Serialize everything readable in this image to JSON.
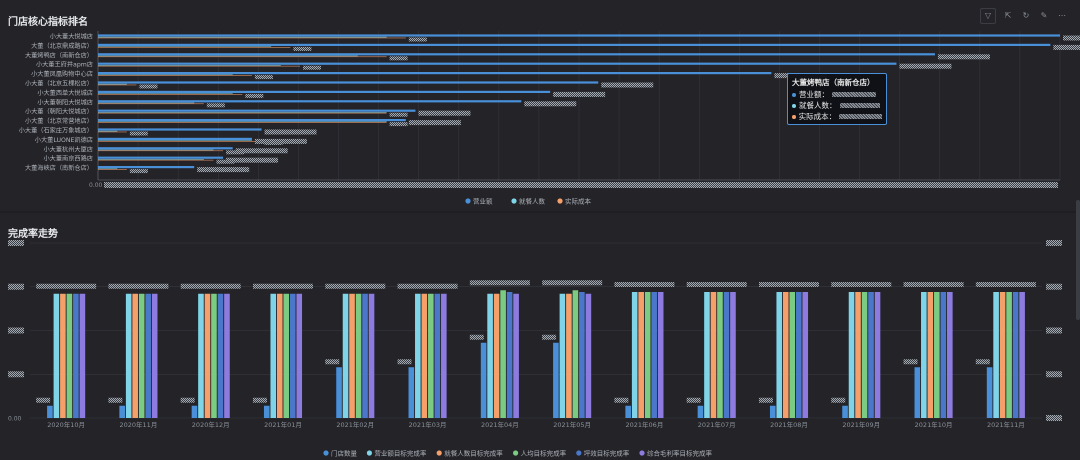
{
  "colors": {
    "revenue": "#4a90d9",
    "diners": "#7fd4e8",
    "cost": "#f59f6a",
    "store_count": "#4a90d9",
    "rev_rate": "#7fd4e8",
    "diner_rate": "#f59f6a",
    "avg_rate": "#7ccb82",
    "ping_rate": "#4a77c9",
    "margin_rate": "#8d7be0"
  },
  "top_panel": {
    "title": "门店核心指标排名"
  },
  "bottom_panel": {
    "title": "完成率走势"
  },
  "tooltip": {
    "title": "大董烤鸭店（南新仓店）",
    "rows": [
      {
        "label": "营业额：",
        "icon": "revenue"
      },
      {
        "label": "就餐人数：",
        "icon": "diners"
      },
      {
        "label": "实际成本：",
        "icon": "cost"
      }
    ]
  },
  "chart_data": [
    {
      "type": "bar",
      "orientation": "horizontal",
      "title": "门店核心指标排名",
      "categories": [
        "小大董大悦城店",
        "大董（北京鼎成路店）",
        "大董烤鸭店（南新仓店）",
        "小大董王府井apm店",
        "小大董凤凰购物中心店",
        "小大董（北京五棵松店）",
        "小大董西单大悦城店",
        "小大董朝阳大悦城店",
        "小大董（朝阳大悦城店）",
        "小大董（北京常营地店）",
        "小大董（石家庄万象城店）",
        "小大董LUONE凯德店",
        "小大董杭州大厦店",
        "小大董南京西路店",
        "大董海峡店（南新仓店）"
      ],
      "series": [
        {
          "name": "营业额",
          "values": [
            100,
            99,
            87,
            83,
            70,
            52,
            47,
            44,
            33,
            32,
            17,
            16,
            14,
            13,
            10
          ]
        },
        {
          "name": "就餐人数",
          "values": [
            30,
            18,
            27,
            19,
            14,
            3,
            14,
            10,
            30,
            30,
            2,
            16,
            12,
            11,
            2
          ]
        },
        {
          "name": "实际成本",
          "values": [
            32,
            20,
            30,
            21,
            16,
            4,
            15,
            11,
            30,
            30,
            3,
            17,
            13,
            12,
            3
          ]
        }
      ],
      "x_axis_first_tick": "0.00",
      "legend": "bottom"
    },
    {
      "type": "bar",
      "title": "完成率走势",
      "categories": [
        "2020年10月",
        "2020年11月",
        "2020年12月",
        "2021年01月",
        "2021年02月",
        "2021年03月",
        "2021年04月",
        "2021年05月",
        "2021年06月",
        "2021年07月",
        "2021年08月",
        "2021年09月",
        "2021年10月",
        "2021年11月"
      ],
      "series": [
        {
          "name": "门店数量",
          "values": [
            0.07,
            0.07,
            0.07,
            0.07,
            0.29,
            0.29,
            0.43,
            0.43,
            0.07,
            0.07,
            0.07,
            0.07,
            0.29,
            0.29
          ]
        },
        {
          "name": "营业额目标完成率",
          "values": [
            0.71,
            0.71,
            0.71,
            0.71,
            0.71,
            0.71,
            0.71,
            0.71,
            0.72,
            0.72,
            0.72,
            0.72,
            0.72,
            0.72
          ]
        },
        {
          "name": "就餐人数目标完成率",
          "values": [
            0.71,
            0.71,
            0.71,
            0.71,
            0.71,
            0.71,
            0.71,
            0.71,
            0.72,
            0.72,
            0.72,
            0.72,
            0.72,
            0.72
          ]
        },
        {
          "name": "人均目标完成率",
          "values": [
            0.71,
            0.71,
            0.71,
            0.71,
            0.71,
            0.71,
            0.73,
            0.73,
            0.72,
            0.72,
            0.72,
            0.72,
            0.72,
            0.72
          ]
        },
        {
          "name": "坪效目标完成率",
          "values": [
            0.71,
            0.71,
            0.71,
            0.71,
            0.71,
            0.71,
            0.72,
            0.72,
            0.72,
            0.72,
            0.72,
            0.72,
            0.72,
            0.72
          ]
        },
        {
          "name": "综合毛利率目标完成率",
          "values": [
            0.71,
            0.71,
            0.71,
            0.71,
            0.71,
            0.71,
            0.71,
            0.71,
            0.72,
            0.72,
            0.72,
            0.72,
            0.72,
            0.72
          ]
        }
      ],
      "y_axis_first_tick": "0.00",
      "ylim": [
        0,
        1
      ],
      "grid": true,
      "legend": "bottom"
    }
  ]
}
